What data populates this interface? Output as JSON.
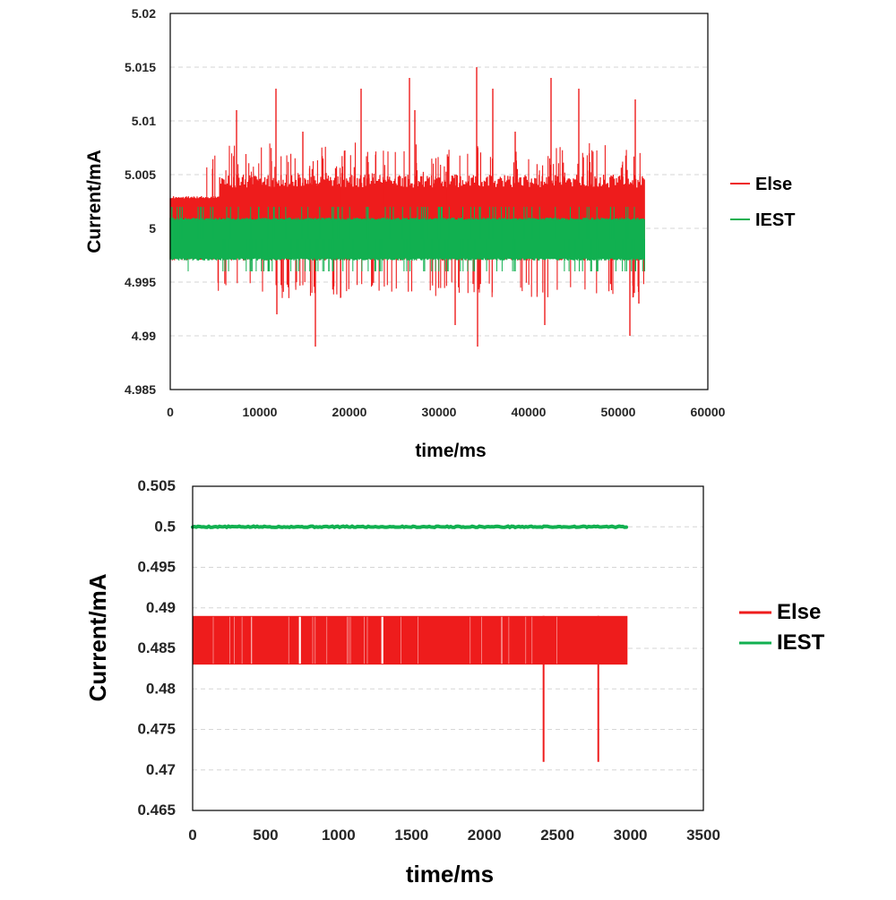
{
  "chart_data": [
    {
      "type": "line",
      "title": "",
      "xlabel": "time/ms",
      "ylabel": "Current/mA",
      "xlim": [
        0,
        60000
      ],
      "ylim": [
        4.985,
        5.02
      ],
      "x_ticks": [
        "0",
        "10000",
        "20000",
        "30000",
        "40000",
        "50000",
        "60000"
      ],
      "y_ticks": [
        "4.985",
        "4.99",
        "4.995",
        "5",
        "5.005",
        "5.01",
        "5.015",
        "5.02"
      ],
      "grid": "horizontal dashed",
      "legend_position": "right",
      "x_extent": [
        0,
        53000
      ],
      "series": [
        {
          "name": "Else",
          "color": "#ee1c1c",
          "band": [
            4.997,
            5.003
          ],
          "band_after_5500ms": [
            4.997,
            5.005
          ],
          "spikes": [
            [
              7400,
              5.011
            ],
            [
              11800,
              5.013
            ],
            [
              11900,
              4.992
            ],
            [
              14800,
              5.009
            ],
            [
              16200,
              4.989
            ],
            [
              21300,
              5.013
            ],
            [
              26700,
              5.014
            ],
            [
              27300,
              5.011
            ],
            [
              31800,
              4.991
            ],
            [
              34200,
              5.015
            ],
            [
              34300,
              4.989
            ],
            [
              36000,
              5.013
            ],
            [
              38500,
              5.009
            ],
            [
              41800,
              4.991
            ],
            [
              42500,
              5.014
            ],
            [
              45600,
              5.013
            ],
            [
              51300,
              4.99
            ],
            [
              51900,
              5.012
            ],
            [
              52300,
              4.993
            ]
          ]
        },
        {
          "name": "IEST",
          "color": "#11b050",
          "band": [
            4.997,
            5.001
          ],
          "extremes": [
            4.996,
            5.002
          ]
        }
      ]
    },
    {
      "type": "line",
      "title": "",
      "xlabel": "time/ms",
      "ylabel": "Current/mA",
      "xlim": [
        0,
        3500
      ],
      "ylim": [
        0.465,
        0.505
      ],
      "x_ticks": [
        "0",
        "500",
        "1000",
        "1500",
        "2000",
        "2500",
        "3000",
        "3500"
      ],
      "y_ticks": [
        "0.465",
        "0.47",
        "0.475",
        "0.48",
        "0.485",
        "0.49",
        "0.495",
        "0.5",
        "0.505"
      ],
      "grid": "horizontal dashed",
      "legend_position": "right",
      "x_extent": [
        0,
        2980
      ],
      "series": [
        {
          "name": "Else",
          "color": "#ee1c1c",
          "band": [
            0.483,
            0.489
          ],
          "gaps_ms": [
            735,
            1300
          ],
          "spikes": [
            [
              2405,
              0.471
            ],
            [
              2780,
              0.471
            ]
          ]
        },
        {
          "name": "IEST",
          "color": "#11b050",
          "value": 0.5
        }
      ]
    }
  ]
}
